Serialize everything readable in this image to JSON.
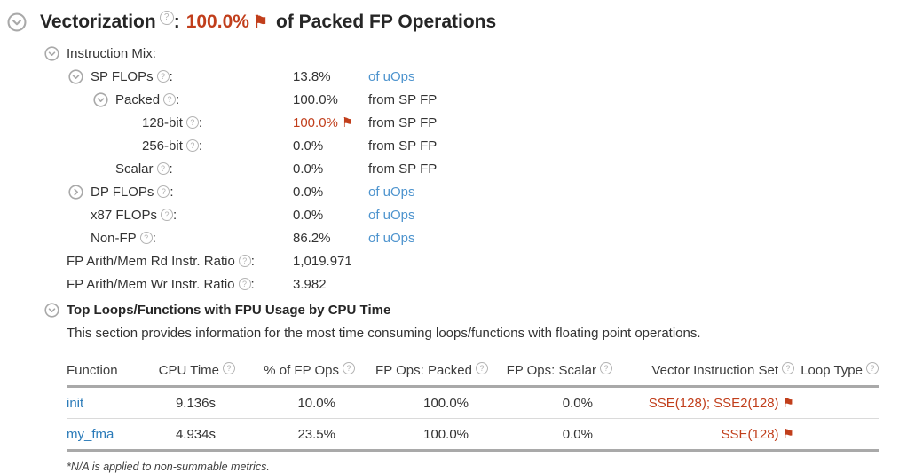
{
  "colors": {
    "flag_red": "#C13E1B",
    "function_link_blue": "#2B7BB9",
    "unit_link_blue": "#4E94CE",
    "text_dark": "#333333",
    "icon_gray": "#A9A9A9",
    "table_border_gray": "#A9A9A9"
  },
  "title": {
    "text": "Vectorization",
    "colon": ":",
    "value": "100.0%",
    "flagged": true,
    "suffix": "of Packed FP Operations"
  },
  "instruction_mix": {
    "rows": [
      {
        "label": "Instruction Mix",
        "indent": 0,
        "chevron": "expanded",
        "help": false,
        "value": "",
        "red": false,
        "flag": false,
        "unit": "",
        "unit_link": false
      },
      {
        "label": "SP FLOPs",
        "indent": 1,
        "chevron": "expanded",
        "help": true,
        "value": "13.8%",
        "red": false,
        "flag": false,
        "unit": "of uOps",
        "unit_link": true
      },
      {
        "label": "Packed",
        "indent": 2,
        "chevron": "expanded",
        "help": true,
        "value": "100.0%",
        "red": false,
        "flag": false,
        "unit": "from SP FP",
        "unit_link": false
      },
      {
        "label": "128-bit",
        "indent": 3,
        "chevron": "none",
        "help": true,
        "value": "100.0%",
        "red": true,
        "flag": true,
        "unit": "from SP FP",
        "unit_link": false
      },
      {
        "label": "256-bit",
        "indent": 3,
        "chevron": "none",
        "help": true,
        "value": "0.0%",
        "red": false,
        "flag": false,
        "unit": "from SP FP",
        "unit_link": false
      },
      {
        "label": "Scalar",
        "indent": 2,
        "chevron": "none",
        "help": true,
        "value": "0.0%",
        "red": false,
        "flag": false,
        "unit": "from SP FP",
        "unit_link": false
      },
      {
        "label": "DP FLOPs",
        "indent": 1,
        "chevron": "collapsed",
        "help": true,
        "value": "0.0%",
        "red": false,
        "flag": false,
        "unit": "of uOps",
        "unit_link": true
      },
      {
        "label": "x87 FLOPs",
        "indent": 1,
        "chevron": "none",
        "help": true,
        "value": "0.0%",
        "red": false,
        "flag": false,
        "unit": "of uOps",
        "unit_link": true
      },
      {
        "label": "Non-FP",
        "indent": 1,
        "chevron": "none",
        "help": true,
        "value": "86.2%",
        "red": false,
        "flag": false,
        "unit": "of uOps",
        "unit_link": true
      },
      {
        "label": "FP Arith/Mem Rd Instr. Ratio",
        "indent": 0,
        "chevron": "none",
        "help": true,
        "value": "1,019.971",
        "red": false,
        "flag": false,
        "unit": "",
        "unit_link": false
      },
      {
        "label": "FP Arith/Mem Wr Instr. Ratio",
        "indent": 0,
        "chevron": "none",
        "help": true,
        "value": "3.982",
        "red": false,
        "flag": false,
        "unit": "",
        "unit_link": false
      }
    ]
  },
  "top_loops": {
    "heading": "Top Loops/Functions with FPU Usage by CPU Time",
    "description": "This section provides information for the most time consuming loops/functions with floating point operations.",
    "table": {
      "columns": [
        {
          "label": "Function",
          "help": false,
          "align": "left"
        },
        {
          "label": "CPU Time",
          "help": true,
          "align": "right"
        },
        {
          "label": "% of FP Ops",
          "help": true,
          "align": "right"
        },
        {
          "label": "FP Ops: Packed",
          "help": true,
          "align": "right"
        },
        {
          "label": "FP Ops: Scalar",
          "help": true,
          "align": "right"
        },
        {
          "label": "Vector Instruction Set",
          "help": true,
          "align": "right"
        },
        {
          "label": "Loop Type",
          "help": true,
          "align": "right"
        }
      ],
      "rows": [
        {
          "function": "init",
          "cpu_time": "9.136s",
          "pct_fp_ops": "10.0%",
          "fp_ops_packed": "100.0%",
          "fp_ops_scalar": "0.0%",
          "vector_isa": "SSE(128); SSE2(128)",
          "isa_flag": true,
          "loop_type": ""
        },
        {
          "function": "my_fma",
          "cpu_time": "4.934s",
          "pct_fp_ops": "23.5%",
          "fp_ops_packed": "100.0%",
          "fp_ops_scalar": "0.0%",
          "vector_isa": "SSE(128)",
          "isa_flag": true,
          "loop_type": ""
        }
      ]
    },
    "footnote": "*N/A is applied to non-summable metrics."
  },
  "icons": {
    "expanded": "chevron-down-circle",
    "collapsed": "chevron-right-circle",
    "help": "?",
    "flag": "⚑"
  }
}
